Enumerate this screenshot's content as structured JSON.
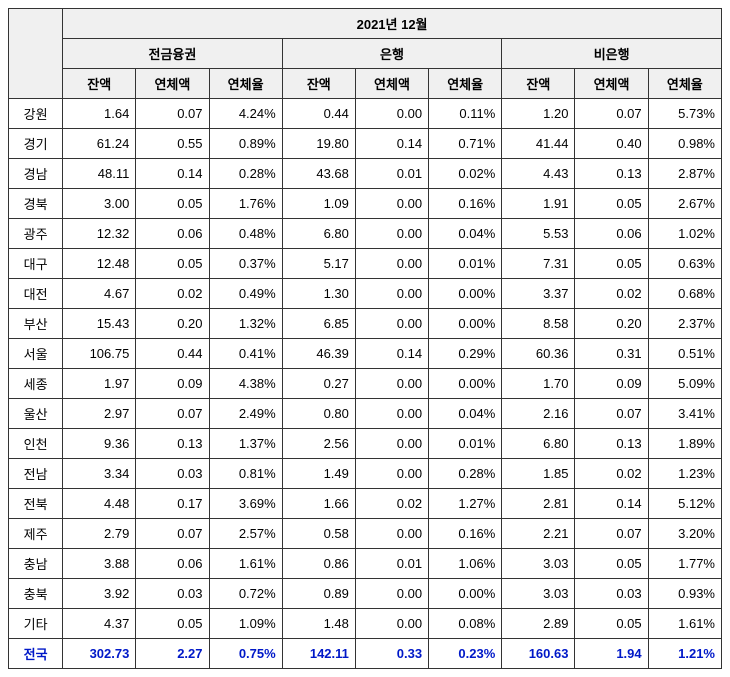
{
  "table": {
    "period": "2021년 12월",
    "groups": [
      {
        "label": "전금융권"
      },
      {
        "label": "은행"
      },
      {
        "label": "비은행"
      }
    ],
    "subcols": [
      {
        "label": "잔액"
      },
      {
        "label": "연체액"
      },
      {
        "label": "연체율"
      }
    ],
    "colors": {
      "total_text": "#0018c8",
      "header_bg": "#f0f0f0",
      "border": "#333333"
    },
    "rows": [
      {
        "region": "강원",
        "cells": [
          "1.64",
          "0.07",
          "4.24%",
          "0.44",
          "0.00",
          "0.11%",
          "1.20",
          "0.07",
          "5.73%"
        ]
      },
      {
        "region": "경기",
        "cells": [
          "61.24",
          "0.55",
          "0.89%",
          "19.80",
          "0.14",
          "0.71%",
          "41.44",
          "0.40",
          "0.98%"
        ]
      },
      {
        "region": "경남",
        "cells": [
          "48.11",
          "0.14",
          "0.28%",
          "43.68",
          "0.01",
          "0.02%",
          "4.43",
          "0.13",
          "2.87%"
        ]
      },
      {
        "region": "경북",
        "cells": [
          "3.00",
          "0.05",
          "1.76%",
          "1.09",
          "0.00",
          "0.16%",
          "1.91",
          "0.05",
          "2.67%"
        ]
      },
      {
        "region": "광주",
        "cells": [
          "12.32",
          "0.06",
          "0.48%",
          "6.80",
          "0.00",
          "0.04%",
          "5.53",
          "0.06",
          "1.02%"
        ]
      },
      {
        "region": "대구",
        "cells": [
          "12.48",
          "0.05",
          "0.37%",
          "5.17",
          "0.00",
          "0.01%",
          "7.31",
          "0.05",
          "0.63%"
        ]
      },
      {
        "region": "대전",
        "cells": [
          "4.67",
          "0.02",
          "0.49%",
          "1.30",
          "0.00",
          "0.00%",
          "3.37",
          "0.02",
          "0.68%"
        ]
      },
      {
        "region": "부산",
        "cells": [
          "15.43",
          "0.20",
          "1.32%",
          "6.85",
          "0.00",
          "0.00%",
          "8.58",
          "0.20",
          "2.37%"
        ]
      },
      {
        "region": "서울",
        "cells": [
          "106.75",
          "0.44",
          "0.41%",
          "46.39",
          "0.14",
          "0.29%",
          "60.36",
          "0.31",
          "0.51%"
        ]
      },
      {
        "region": "세종",
        "cells": [
          "1.97",
          "0.09",
          "4.38%",
          "0.27",
          "0.00",
          "0.00%",
          "1.70",
          "0.09",
          "5.09%"
        ]
      },
      {
        "region": "울산",
        "cells": [
          "2.97",
          "0.07",
          "2.49%",
          "0.80",
          "0.00",
          "0.04%",
          "2.16",
          "0.07",
          "3.41%"
        ]
      },
      {
        "region": "인천",
        "cells": [
          "9.36",
          "0.13",
          "1.37%",
          "2.56",
          "0.00",
          "0.01%",
          "6.80",
          "0.13",
          "1.89%"
        ]
      },
      {
        "region": "전남",
        "cells": [
          "3.34",
          "0.03",
          "0.81%",
          "1.49",
          "0.00",
          "0.28%",
          "1.85",
          "0.02",
          "1.23%"
        ]
      },
      {
        "region": "전북",
        "cells": [
          "4.48",
          "0.17",
          "3.69%",
          "1.66",
          "0.02",
          "1.27%",
          "2.81",
          "0.14",
          "5.12%"
        ]
      },
      {
        "region": "제주",
        "cells": [
          "2.79",
          "0.07",
          "2.57%",
          "0.58",
          "0.00",
          "0.16%",
          "2.21",
          "0.07",
          "3.20%"
        ]
      },
      {
        "region": "충남",
        "cells": [
          "3.88",
          "0.06",
          "1.61%",
          "0.86",
          "0.01",
          "1.06%",
          "3.03",
          "0.05",
          "1.77%"
        ]
      },
      {
        "region": "충북",
        "cells": [
          "3.92",
          "0.03",
          "0.72%",
          "0.89",
          "0.00",
          "0.00%",
          "3.03",
          "0.03",
          "0.93%"
        ]
      },
      {
        "region": "기타",
        "cells": [
          "4.37",
          "0.05",
          "1.09%",
          "1.48",
          "0.00",
          "0.08%",
          "2.89",
          "0.05",
          "1.61%"
        ]
      }
    ],
    "total": {
      "region": "전국",
      "cells": [
        "302.73",
        "2.27",
        "0.75%",
        "142.11",
        "0.33",
        "0.23%",
        "160.63",
        "1.94",
        "1.21%"
      ]
    }
  }
}
